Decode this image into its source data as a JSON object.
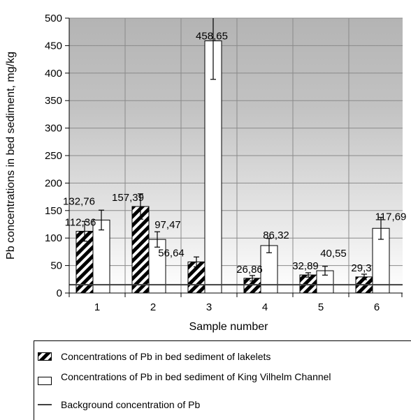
{
  "chart_data": {
    "type": "bar",
    "ylabel": "Pb concentrations in bed sediment, mg/kg",
    "xlabel": "Sample number",
    "categories": [
      "1",
      "2",
      "3",
      "4",
      "5",
      "6"
    ],
    "ylim": [
      0,
      500
    ],
    "yticks": [
      "0",
      "50",
      "100",
      "150",
      "200",
      "250",
      "300",
      "350",
      "400",
      "450",
      "500"
    ],
    "grid": true,
    "legend_position": "bottom",
    "series": [
      {
        "name": "Concentrations of Pb in bed sediment of lakelets",
        "pattern": "diagonal-hatch",
        "values": [
          112.36,
          157.39,
          56.64,
          26.86,
          32.89,
          29.3
        ],
        "value_labels": [
          "112,36",
          "157,39",
          "56,64",
          "26,86",
          "32,89",
          "29,3"
        ],
        "error": [
          18,
          23,
          9,
          5,
          4,
          5
        ]
      },
      {
        "name": "Concentrations of Pb in bed sediment of King Vilhelm Channel",
        "pattern": "white",
        "values": [
          132.76,
          97.47,
          458.65,
          86.32,
          40.55,
          117.69
        ],
        "value_labels": [
          "132,76",
          "97,47",
          "458,65",
          "86,32",
          "40,55",
          "117,69"
        ],
        "error": [
          18,
          14,
          70,
          13,
          8,
          20
        ]
      }
    ],
    "reference_line": {
      "name": "Background concentration of Pb",
      "value": 15
    },
    "colors": {
      "plot_top": "#b4b4b4",
      "plot_bottom": "#ffffff",
      "grid": "#8a8a8a",
      "reference_line": "#404040"
    }
  },
  "legend": {
    "items": [
      {
        "label": "Concentrations of Pb in bed sediment of lakelets"
      },
      {
        "label": "Concentrations of Pb in bed sediment of King Vilhelm Channel"
      },
      {
        "label": "Background concentration of Pb"
      }
    ]
  }
}
